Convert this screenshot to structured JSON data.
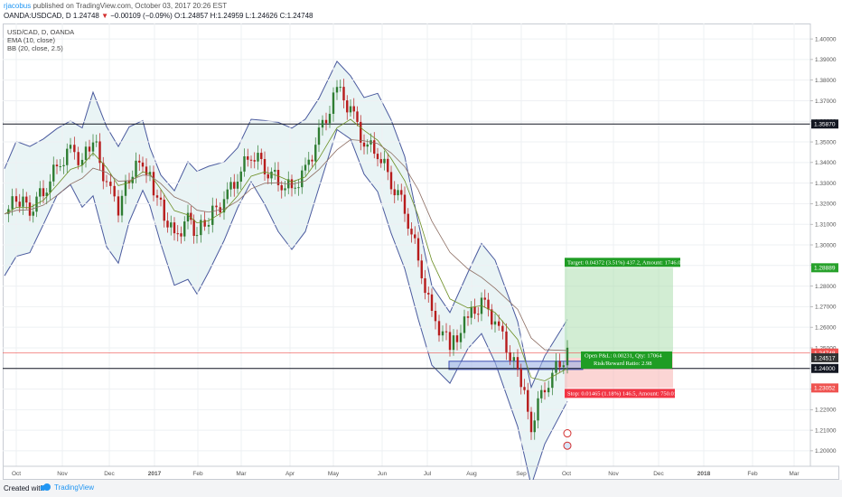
{
  "header": {
    "author": "rjacobus",
    "published": "published on TradingView.com, October 03, 2017 20:26 EST",
    "symbol": "OANDA:USDCAD, D",
    "last": "1.24748",
    "change": "−0.00109 (−0.09%)",
    "open": "O:1.24857",
    "high": "H:1.24959",
    "low": "L:1.24626",
    "close": "C:1.24748"
  },
  "legend": {
    "title": "USD/CAD, D, OANDA",
    "ema": "EMA (10, close)",
    "bb": "BB (20, close, 2.5)"
  },
  "footer": {
    "created_with": "Created with",
    "brand": "TradingView"
  },
  "chart_data": {
    "type": "candlestick",
    "ylim": [
      1.1925,
      1.4075
    ],
    "y_ticks": [
      "1.19000",
      "1.20000",
      "1.21000",
      "1.22000",
      "1.23000",
      "1.24000",
      "1.25000",
      "1.26000",
      "1.27000",
      "1.28000",
      "1.29000",
      "1.30000",
      "1.31000",
      "1.32000",
      "1.33000",
      "1.34000",
      "1.35000",
      "1.36000",
      "1.37000",
      "1.38000",
      "1.39000",
      "1.40000"
    ],
    "x_ticks": [
      "Oct",
      "Nov",
      "Dec",
      "2017",
      "Feb",
      "Mar",
      "Apr",
      "May",
      "Jun",
      "Jul",
      "Aug",
      "Sep",
      "Oct",
      "Nov",
      "Dec",
      "2018",
      "Feb",
      "Mar"
    ],
    "close_path": [
      [
        "Oct",
        1.315
      ],
      [
        "Oct",
        1.322
      ],
      [
        "Oct",
        1.318
      ],
      [
        "Oct",
        1.326
      ],
      [
        "Nov",
        1.338
      ],
      [
        "Nov",
        1.346
      ],
      [
        "Nov",
        1.341
      ],
      [
        "Nov",
        1.352
      ],
      [
        "Dec",
        1.329
      ],
      [
        "Dec",
        1.318
      ],
      [
        "Dec",
        1.332
      ],
      [
        "Dec",
        1.342
      ],
      [
        "2017",
        1.333
      ],
      [
        "2017",
        1.318
      ],
      [
        "2017",
        1.304
      ],
      [
        "2017",
        1.312
      ],
      [
        "Feb",
        1.306
      ],
      [
        "Feb",
        1.313
      ],
      [
        "Feb",
        1.322
      ],
      [
        "Mar",
        1.333
      ],
      [
        "Mar",
        1.345
      ],
      [
        "Mar",
        1.338
      ],
      [
        "Mar",
        1.331
      ],
      [
        "Apr",
        1.327
      ],
      [
        "Apr",
        1.336
      ],
      [
        "Apr",
        1.353
      ],
      [
        "May",
        1.375
      ],
      [
        "May",
        1.366
      ],
      [
        "May",
        1.349
      ],
      [
        "Jun",
        1.345
      ],
      [
        "Jun",
        1.331
      ],
      [
        "Jun",
        1.318
      ],
      [
        "Jul",
        1.293
      ],
      [
        "Jul",
        1.266
      ],
      [
        "Jul",
        1.251
      ],
      [
        "Aug",
        1.264
      ],
      [
        "Aug",
        1.272
      ],
      [
        "Aug",
        1.263
      ],
      [
        "Sep",
        1.238
      ],
      [
        "Sep",
        1.213
      ],
      [
        "Sep",
        1.232
      ],
      [
        "Oct",
        1.2475
      ]
    ],
    "horizontal_lines": [
      1.3587,
      1.24
    ],
    "price_labels": [
      {
        "text": "1.35870",
        "price": 1.3587,
        "bg": "#131722",
        "fg": "#ffffff"
      },
      {
        "text": "1.28889",
        "price": 1.28889,
        "bg": "#27a12b",
        "fg": "#ffffff"
      },
      {
        "text": "1.24748",
        "price": 1.24748,
        "bg": "#ef5350",
        "fg": "#ffffff"
      },
      {
        "text": "1.24517",
        "price": 1.24517,
        "bg": "#333333",
        "fg": "#ffffff"
      },
      {
        "text": "1.24000",
        "price": 1.24,
        "bg": "#131722",
        "fg": "#ffffff"
      },
      {
        "text": "1.23052",
        "price": 1.23052,
        "bg": "#ef5350",
        "fg": "#ffffff"
      }
    ],
    "position": {
      "entry": 1.24517,
      "target": 1.28889,
      "stop": 1.23052,
      "target_label": "Target: 0.04372 (3.51%) 437.2, Amount: 1746.04",
      "stop_label": "Stop: 0.01465 (1.18%) 146.5, Amount: 750.01",
      "open_pl_label": "Open P&L: 0.00231, Qty: 17064",
      "rr_label": "Risk/Reward Ratio: 2.98"
    },
    "support_zone": [
      1.2395,
      1.2435
    ]
  }
}
